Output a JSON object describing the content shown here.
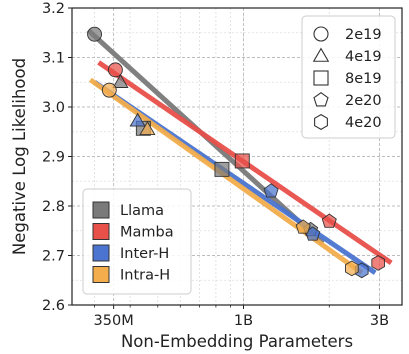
{
  "chart_data": {
    "type": "scatter",
    "title": "",
    "xlabel": "Non-Embedding Parameters",
    "ylabel": "Negative Log Likelihood",
    "x_scale": "log",
    "xlim": [
      250000000.0,
      3600000000.0
    ],
    "ylim": [
      2.6,
      3.2
    ],
    "x_ticks": [
      {
        "value": 350000000.0,
        "label": "350M"
      },
      {
        "value": 1000000000.0,
        "label": "1B"
      },
      {
        "value": 3000000000.0,
        "label": "3B"
      }
    ],
    "y_ticks": [
      {
        "value": 2.6,
        "label": "2.6"
      },
      {
        "value": 2.7,
        "label": "2.7"
      },
      {
        "value": 2.8,
        "label": "2.8"
      },
      {
        "value": 2.9,
        "label": "2.9"
      },
      {
        "value": 3.0,
        "label": "3.0"
      },
      {
        "value": 3.1,
        "label": "3.1"
      },
      {
        "value": 3.2,
        "label": "3.2"
      }
    ],
    "grid": true,
    "compute_legend": {
      "placement": "top-right",
      "entries": [
        {
          "label": "2e19",
          "marker": "circle"
        },
        {
          "label": "4e19",
          "marker": "triangle"
        },
        {
          "label": "8e19",
          "marker": "square"
        },
        {
          "label": "2e20",
          "marker": "pentagon"
        },
        {
          "label": "4e20",
          "marker": "hexagon"
        }
      ]
    },
    "model_legend": {
      "placement": "bottom-left",
      "entries": [
        {
          "label": "Llama",
          "color": "#7a7a7a"
        },
        {
          "label": "Mamba",
          "color": "#e8504a"
        },
        {
          "label": "Inter-H",
          "color": "#4a74d0"
        },
        {
          "label": "Intra-H",
          "color": "#f3ad4c"
        }
      ]
    },
    "series": [
      {
        "name": "Llama",
        "color": "#7a7a7a",
        "fit": {
          "x": [
            285000000.0,
            1900000000.0
          ],
          "y": [
            3.155,
            2.725
          ]
        },
        "points": [
          {
            "x": 300000000.0,
            "y": 3.147,
            "marker": "circle"
          },
          {
            "x": 370000000.0,
            "y": 3.05,
            "marker": "triangle"
          },
          {
            "x": 445000000.0,
            "y": 2.957,
            "marker": "square"
          },
          {
            "x": 840000000.0,
            "y": 2.874,
            "marker": "square"
          },
          {
            "x": 1720000000.0,
            "y": 2.752,
            "marker": "pentagon"
          }
        ]
      },
      {
        "name": "Mamba",
        "color": "#e8504a",
        "fit": {
          "x": [
            310000000.0,
            3300000000.0
          ],
          "y": [
            3.09,
            2.685
          ]
        },
        "points": [
          {
            "x": 355000000.0,
            "y": 3.075,
            "marker": "circle"
          },
          {
            "x": 990000000.0,
            "y": 2.891,
            "marker": "square"
          },
          {
            "x": 2000000000.0,
            "y": 2.769,
            "marker": "pentagon"
          },
          {
            "x": 2970000000.0,
            "y": 2.685,
            "marker": "hexagon"
          }
        ]
      },
      {
        "name": "Inter-H",
        "color": "#4a74d0",
        "fit": {
          "x": [
            300000000.0,
            2900000000.0
          ],
          "y": [
            3.05,
            2.665
          ]
        },
        "points": [
          {
            "x": 425000000.0,
            "y": 2.972,
            "marker": "triangle"
          },
          {
            "x": 1250000000.0,
            "y": 2.83,
            "marker": "pentagon"
          },
          {
            "x": 1750000000.0,
            "y": 2.743,
            "marker": "pentagon"
          },
          {
            "x": 2600000000.0,
            "y": 2.67,
            "marker": "hexagon"
          }
        ]
      },
      {
        "name": "Intra-H",
        "color": "#f3ad4c",
        "fit": {
          "x": [
            290000000.0,
            2600000000.0
          ],
          "y": [
            3.055,
            2.665
          ]
        },
        "points": [
          {
            "x": 338000000.0,
            "y": 3.034,
            "marker": "circle"
          },
          {
            "x": 460000000.0,
            "y": 2.955,
            "marker": "triangle"
          },
          {
            "x": 1620000000.0,
            "y": 2.757,
            "marker": "pentagon"
          },
          {
            "x": 2400000000.0,
            "y": 2.674,
            "marker": "hexagon"
          }
        ]
      }
    ]
  }
}
